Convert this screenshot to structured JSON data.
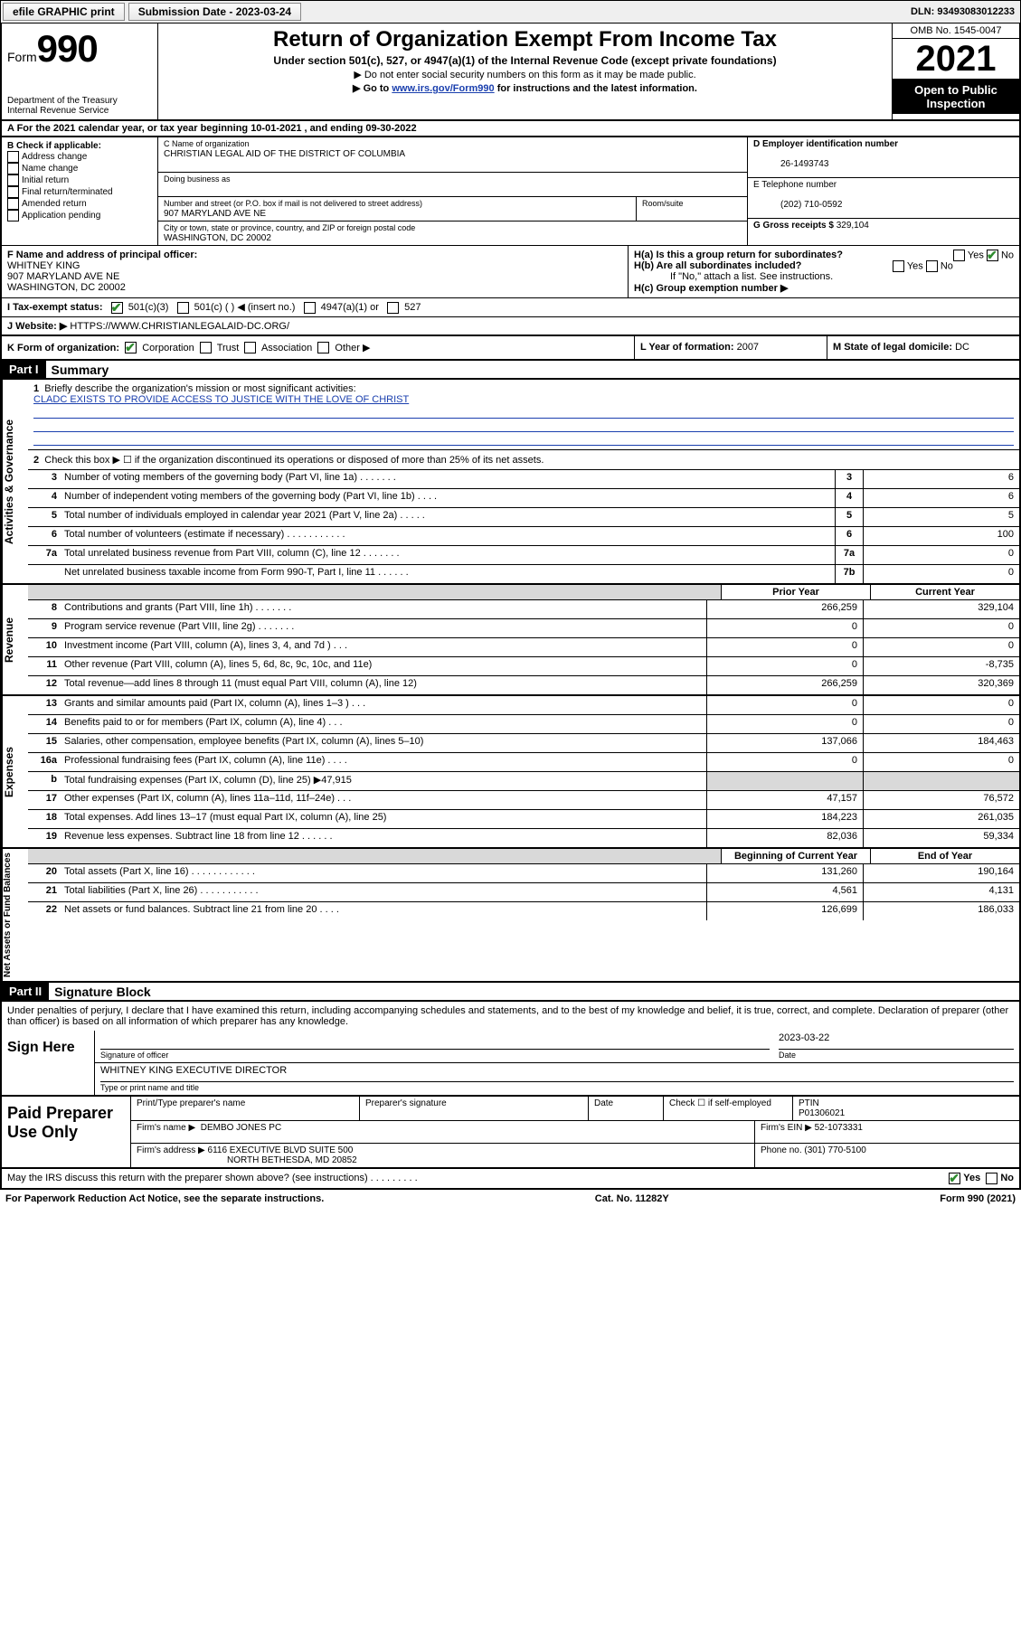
{
  "topbar": {
    "efile_label": "efile GRAPHIC print",
    "submission_label": "Submission Date - 2023-03-24",
    "dln": "DLN: 93493083012233"
  },
  "header": {
    "form_label": "Form",
    "form_number": "990",
    "dept": "Department of the Treasury",
    "irs": "Internal Revenue Service",
    "title": "Return of Organization Exempt From Income Tax",
    "sub1": "Under section 501(c), 527, or 4947(a)(1) of the Internal Revenue Code (except private foundations)",
    "sub2": "▶ Do not enter social security numbers on this form as it may be made public.",
    "sub3_prefix": "▶ Go to ",
    "sub3_link": "www.irs.gov/Form990",
    "sub3_suffix": " for instructions and the latest information.",
    "omb": "OMB No. 1545-0047",
    "year": "2021",
    "open": "Open to Public Inspection"
  },
  "rowA": "A For the 2021 calendar year, or tax year beginning 10-01-2021   , and ending 09-30-2022",
  "B": {
    "label": "B Check if applicable:",
    "items": [
      "Address change",
      "Name change",
      "Initial return",
      "Final return/terminated",
      "Amended return",
      "Application pending"
    ]
  },
  "C": {
    "name_label": "C Name of organization",
    "name": "CHRISTIAN LEGAL AID OF THE DISTRICT OF COLUMBIA",
    "dba_label": "Doing business as",
    "street_label": "Number and street (or P.O. box if mail is not delivered to street address)",
    "room_label": "Room/suite",
    "street": "907 MARYLAND AVE NE",
    "city_label": "City or town, state or province, country, and ZIP or foreign postal code",
    "city": "WASHINGTON, DC  20002"
  },
  "D": {
    "label": "D Employer identification number",
    "value": "26-1493743"
  },
  "E": {
    "label": "E Telephone number",
    "value": "(202) 710-0592"
  },
  "G": {
    "label": "G Gross receipts $",
    "value": "329,104"
  },
  "F": {
    "label": "F Name and address of principal officer:",
    "name": "WHITNEY KING",
    "addr1": "907 MARYLAND AVE NE",
    "addr2": "WASHINGTON, DC  20002"
  },
  "H": {
    "a": "H(a)  Is this a group return for subordinates?",
    "b": "H(b)  Are all subordinates included?",
    "note": "If \"No,\" attach a list. See instructions.",
    "c": "H(c)  Group exemption number ▶",
    "yes": "Yes",
    "no": "No"
  },
  "I": {
    "label": "I   Tax-exempt status:",
    "opt1": "501(c)(3)",
    "opt2": "501(c) (   ) ◀ (insert no.)",
    "opt3": "4947(a)(1) or",
    "opt4": "527"
  },
  "J": {
    "label": "J   Website: ▶",
    "value": "HTTPS://WWW.CHRISTIANLEGALAID-DC.ORG/"
  },
  "K": {
    "label": "K Form of organization:",
    "opts": [
      "Corporation",
      "Trust",
      "Association",
      "Other ▶"
    ]
  },
  "L": {
    "label": "L Year of formation:",
    "value": "2007"
  },
  "M": {
    "label": "M State of legal domicile:",
    "value": "DC"
  },
  "part1": {
    "hdr": "Part I",
    "title": "Summary",
    "line1_label": "Briefly describe the organization's mission or most significant activities:",
    "line1_value": "CLADC EXISTS TO PROVIDE ACCESS TO JUSTICE WITH THE LOVE OF CHRIST",
    "line2": "Check this box ▶ ☐ if the organization discontinued its operations or disposed of more than 25% of its net assets.",
    "governance_label": "Activities & Governance",
    "revenue_label": "Revenue",
    "expenses_label": "Expenses",
    "netassets_label": "Net Assets or Fund Balances",
    "prior_hdr": "Prior Year",
    "current_hdr": "Current Year",
    "begin_hdr": "Beginning of Current Year",
    "end_hdr": "End of Year",
    "lines_gov": [
      {
        "n": "3",
        "d": "Number of voting members of the governing body (Part VI, line 1a)  .   .   .   .   .   .   .",
        "box": "3",
        "v": "6"
      },
      {
        "n": "4",
        "d": "Number of independent voting members of the governing body (Part VI, line 1b)   .   .   .   .",
        "box": "4",
        "v": "6"
      },
      {
        "n": "5",
        "d": "Total number of individuals employed in calendar year 2021 (Part V, line 2a)   .   .   .   .   .",
        "box": "5",
        "v": "5"
      },
      {
        "n": "6",
        "d": "Total number of volunteers (estimate if necessary)   .   .   .   .   .   .   .   .   .   .   .",
        "box": "6",
        "v": "100"
      },
      {
        "n": "7a",
        "d": "Total unrelated business revenue from Part VIII, column (C), line 12   .   .   .   .   .   .   .",
        "box": "7a",
        "v": "0"
      },
      {
        "n": "",
        "d": "Net unrelated business taxable income from Form 990-T, Part I, line 11   .   .   .   .   .   .",
        "box": "7b",
        "v": "0"
      }
    ],
    "lines_rev": [
      {
        "n": "8",
        "d": "Contributions and grants (Part VIII, line 1h)   .   .   .   .   .   .   .",
        "p": "266,259",
        "c": "329,104"
      },
      {
        "n": "9",
        "d": "Program service revenue (Part VIII, line 2g)   .   .   .   .   .   .   .",
        "p": "0",
        "c": "0"
      },
      {
        "n": "10",
        "d": "Investment income (Part VIII, column (A), lines 3, 4, and 7d )   .   .   .",
        "p": "0",
        "c": "0"
      },
      {
        "n": "11",
        "d": "Other revenue (Part VIII, column (A), lines 5, 6d, 8c, 9c, 10c, and 11e)",
        "p": "0",
        "c": "-8,735"
      },
      {
        "n": "12",
        "d": "Total revenue—add lines 8 through 11 (must equal Part VIII, column (A), line 12)",
        "p": "266,259",
        "c": "320,369"
      }
    ],
    "lines_exp": [
      {
        "n": "13",
        "d": "Grants and similar amounts paid (Part IX, column (A), lines 1–3 )   .   .   .",
        "p": "0",
        "c": "0"
      },
      {
        "n": "14",
        "d": "Benefits paid to or for members (Part IX, column (A), line 4)   .   .   .",
        "p": "0",
        "c": "0"
      },
      {
        "n": "15",
        "d": "Salaries, other compensation, employee benefits (Part IX, column (A), lines 5–10)",
        "p": "137,066",
        "c": "184,463"
      },
      {
        "n": "16a",
        "d": "Professional fundraising fees (Part IX, column (A), line 11e)   .   .   .   .",
        "p": "0",
        "c": "0"
      },
      {
        "n": "b",
        "d": "Total fundraising expenses (Part IX, column (D), line 25) ▶47,915",
        "p": "",
        "c": "",
        "shade": true
      },
      {
        "n": "17",
        "d": "Other expenses (Part IX, column (A), lines 11a–11d, 11f–24e)   .   .   .",
        "p": "47,157",
        "c": "76,572"
      },
      {
        "n": "18",
        "d": "Total expenses. Add lines 13–17 (must equal Part IX, column (A), line 25)",
        "p": "184,223",
        "c": "261,035"
      },
      {
        "n": "19",
        "d": "Revenue less expenses. Subtract line 18 from line 12   .   .   .   .   .   .",
        "p": "82,036",
        "c": "59,334"
      }
    ],
    "lines_net": [
      {
        "n": "20",
        "d": "Total assets (Part X, line 16)   .   .   .   .   .   .   .   .   .   .   .   .",
        "p": "131,260",
        "c": "190,164"
      },
      {
        "n": "21",
        "d": "Total liabilities (Part X, line 26)   .   .   .   .   .   .   .   .   .   .   .",
        "p": "4,561",
        "c": "4,131"
      },
      {
        "n": "22",
        "d": "Net assets or fund balances. Subtract line 21 from line 20   .   .   .   .",
        "p": "126,699",
        "c": "186,033"
      }
    ]
  },
  "part2": {
    "hdr": "Part II",
    "title": "Signature Block",
    "declaration": "Under penalties of perjury, I declare that I have examined this return, including accompanying schedules and statements, and to the best of my knowledge and belief, it is true, correct, and complete. Declaration of preparer (other than officer) is based on all information of which preparer has any knowledge.",
    "sign_here": "Sign Here",
    "sig_officer": "Signature of officer",
    "date": "Date",
    "sig_date": "2023-03-22",
    "name_title": "WHITNEY KING  EXECUTIVE DIRECTOR",
    "type_name": "Type or print name and title"
  },
  "preparer": {
    "label": "Paid Preparer Use Only",
    "print_name": "Print/Type preparer's name",
    "prep_sig": "Preparer's signature",
    "date": "Date",
    "check_self": "Check ☐ if self-employed",
    "ptin_label": "PTIN",
    "ptin": "P01306021",
    "firm_name_label": "Firm's name    ▶",
    "firm_name": "DEMBO JONES PC",
    "firm_ein_label": "Firm's EIN ▶",
    "firm_ein": "52-1073331",
    "firm_addr_label": "Firm's address ▶",
    "firm_addr1": "6116 EXECUTIVE BLVD SUITE 500",
    "firm_addr2": "NORTH BETHESDA, MD  20852",
    "phone_label": "Phone no.",
    "phone": "(301) 770-5100"
  },
  "may_discuss": "May the IRS discuss this return with the preparer shown above? (see instructions)   .   .   .   .   .   .   .   .   .",
  "footer": {
    "left": "For Paperwork Reduction Act Notice, see the separate instructions.",
    "mid": "Cat. No. 11282Y",
    "right": "Form 990 (2021)"
  }
}
